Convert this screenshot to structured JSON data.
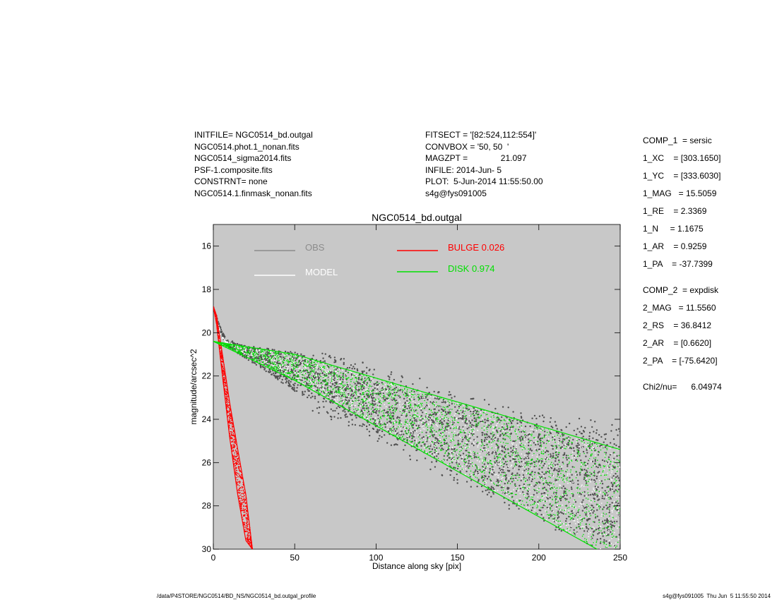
{
  "header": {
    "left_lines": [
      "INITFILE= NGC0514_bd.outgal",
      "NGC0514.phot.1_nonan.fits",
      "NGC0514_sigma2014.fits",
      "PSF-1.composite.fits",
      "CONSTRNT= none",
      "NGC0514.1.finmask_nonan.fits"
    ],
    "mid_lines": [
      "FITSECT = '[82:524,112:554]'",
      "CONVBOX = '50, 50  '",
      "MAGZPT =              21.097",
      "INFILE: 2014-Jun- 5",
      "PLOT:  5-Jun-2014 11:55:50.00",
      "s4g@fys091005"
    ]
  },
  "params": {
    "comp1": [
      "COMP_1  = sersic",
      "1_XC    = [303.1650]",
      "1_YC    = [333.6030]",
      "1_MAG   = 15.5059",
      "1_RE    = 2.3369",
      "1_N     = 1.1675",
      "1_AR    = 0.9259",
      "1_PA    = -37.7399"
    ],
    "comp2": [
      "COMP_2  = expdisk",
      "2_MAG   = 11.5560",
      "2_RS    = 36.8412",
      "2_AR    = [0.6620]",
      "2_PA    = [-75.6420]"
    ],
    "chi2": "Chi2/nu=      6.04974"
  },
  "footer": {
    "left": "/data/P4STORE/NGC0514/BD_NS/NGC0514_bd.outgal_profile",
    "right": "s4g@fys091005  Thu Jun  5 11:55:50 2014"
  },
  "colors": {
    "background": "#c8c8c8",
    "obs": "#505050",
    "model": "#ffffff",
    "bulge": "#ff0000",
    "disk": "#00e000"
  },
  "chart_data": {
    "type": "scatter",
    "title": "NGC0514_bd.outgal",
    "xlabel": "Distance along sky [pix]",
    "ylabel": "magnitude/arcsec^2",
    "xlim": [
      0,
      250
    ],
    "ylim": [
      15,
      30
    ],
    "y_inverted": true,
    "grid": false,
    "legend_placement": "top",
    "x_ticks": [
      0,
      50,
      100,
      150,
      200,
      250
    ],
    "y_ticks": [
      16,
      18,
      20,
      22,
      24,
      26,
      28,
      30
    ],
    "legend": [
      {
        "label": "OBS",
        "color": "#8c8c8c"
      },
      {
        "label": "MODEL",
        "color": "#ffffff"
      },
      {
        "label": "BULGE  0.026",
        "color": "#ff0000"
      },
      {
        "label": "DISK  0.974",
        "color": "#00e000"
      }
    ],
    "series": [
      {
        "name": "OBS",
        "x": [
          0,
          5,
          8,
          20,
          50,
          100,
          150,
          200,
          250
        ],
        "y_upper": [
          18.8,
          19.9,
          20.3,
          20.6,
          20.9,
          22.0,
          23.2,
          24.2,
          24.5
        ],
        "y_lower": [
          18.8,
          20.2,
          20.6,
          21.2,
          22.7,
          24.6,
          26.5,
          28.5,
          30.0
        ]
      },
      {
        "name": "MODEL",
        "x": [
          0,
          5,
          8,
          20,
          50,
          100,
          150,
          200,
          250
        ],
        "y_upper": [
          18.8,
          20.1,
          20.4,
          20.7,
          21.0,
          22.1,
          23.2,
          24.3,
          25.4
        ],
        "y_lower": [
          18.8,
          20.2,
          20.5,
          21.0,
          22.2,
          24.3,
          26.4,
          28.5,
          30.5
        ]
      },
      {
        "name": "BULGE  0.026",
        "x": [
          0,
          2,
          5,
          10,
          15,
          20,
          24
        ],
        "y_upper": [
          18.8,
          19.2,
          20.7,
          23.2,
          25.4,
          27.5,
          30.0
        ],
        "y_lower": [
          18.8,
          19.6,
          21.6,
          24.8,
          27.5,
          29.6,
          30.0
        ]
      },
      {
        "name": "DISK  0.974",
        "x": [
          0,
          50,
          100,
          150,
          200,
          250
        ],
        "y_upper": [
          20.4,
          21.0,
          22.1,
          23.2,
          24.3,
          25.4
        ],
        "y_lower": [
          20.4,
          22.2,
          24.3,
          26.4,
          28.5,
          30.6
        ]
      }
    ]
  }
}
